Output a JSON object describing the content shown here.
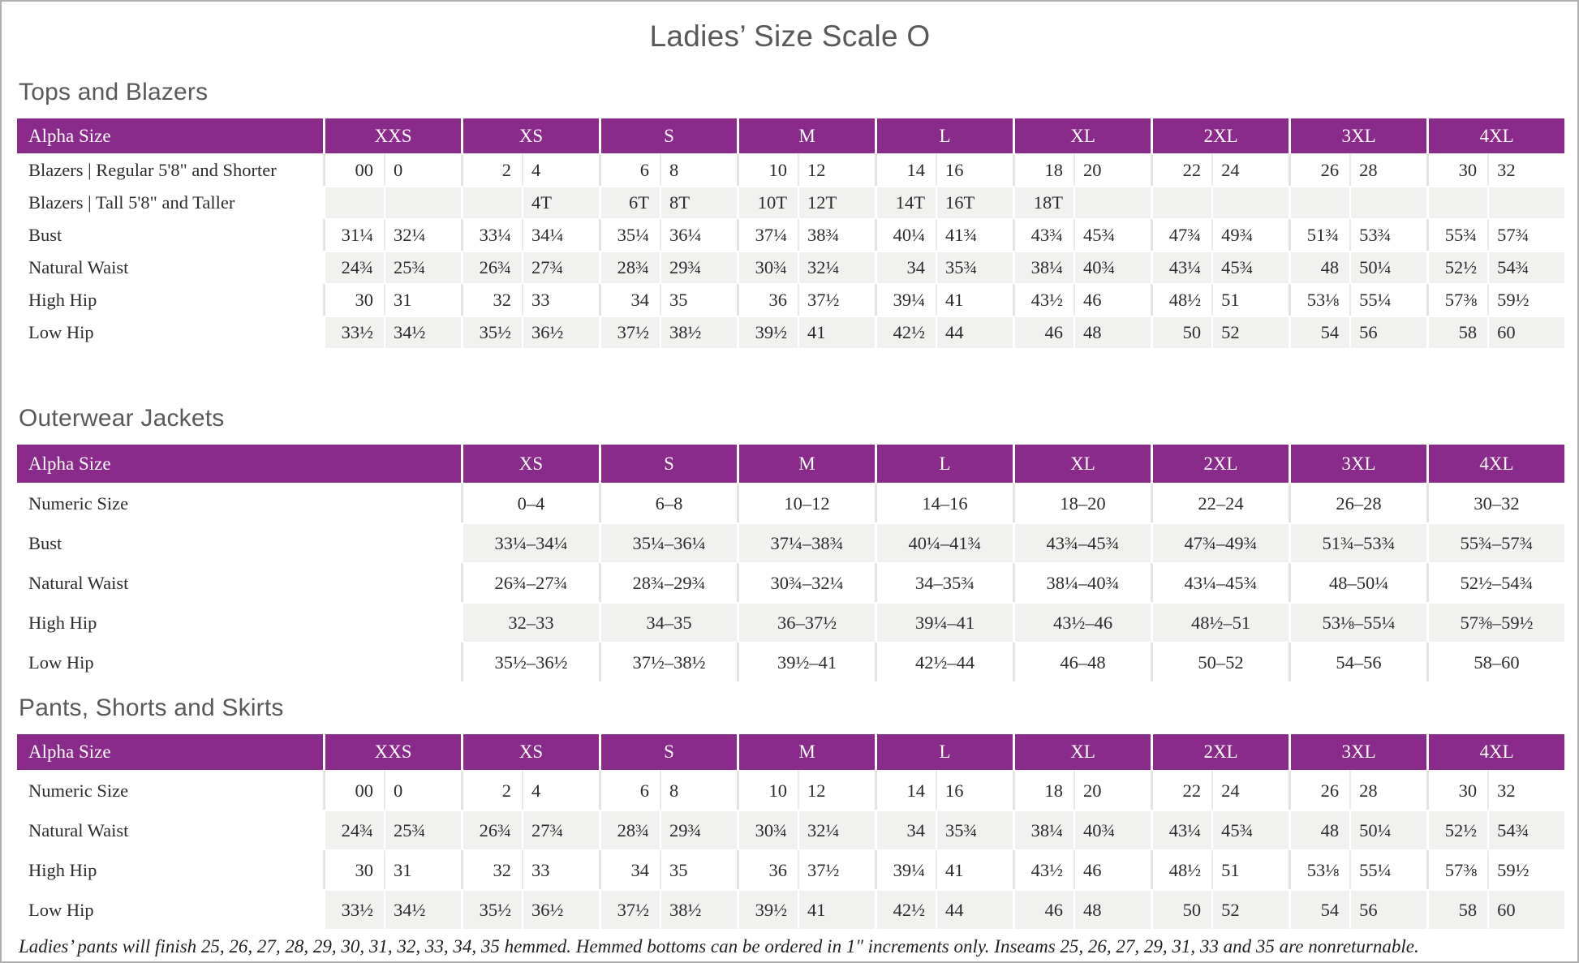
{
  "title": "Ladies’ Size Scale O",
  "footnote": "Ladies’ pants will finish 25, 26, 27, 28, 29, 30, 31, 32, 33, 34, 35 hemmed. Hemmed bottoms can be ordered in 1″ increments only. Inseams 25, 26, 27, 29, 31, 33 and 35 are nonreturnable.",
  "colors": {
    "header_purple": "#8a2a8b",
    "alt_row_gray": "#f1f1ef",
    "heading_gray": "#595959"
  },
  "tables": [
    {
      "id": "tops",
      "section_title": "Tops and Blazers",
      "layout": "paired",
      "corner_label": "Alpha Size",
      "sizes": [
        "XXS",
        "XS",
        "S",
        "M",
        "L",
        "XL",
        "2XL",
        "3XL",
        "4XL"
      ],
      "rows": [
        {
          "label": "Blazers | Regular 5'8\" and Shorter",
          "values": [
            "00",
            "0",
            "2",
            "4",
            "6",
            "8",
            "10",
            "12",
            "14",
            "16",
            "18",
            "20",
            "22",
            "24",
            "26",
            "28",
            "30",
            "32"
          ]
        },
        {
          "label": "Blazers | Tall 5'8\" and Taller",
          "values": [
            "",
            "",
            "",
            "4T",
            "6T",
            "8T",
            "10T",
            "12T",
            "14T",
            "16T",
            "18T",
            "",
            "",
            "",
            "",
            "",
            "",
            ""
          ]
        },
        {
          "label": "Bust",
          "values": [
            "31¼",
            "32¼",
            "33¼",
            "34¼",
            "35¼",
            "36¼",
            "37¼",
            "38¾",
            "40¼",
            "41¾",
            "43¾",
            "45¾",
            "47¾",
            "49¾",
            "51¾",
            "53¾",
            "55¾",
            "57¾"
          ]
        },
        {
          "label": "Natural Waist",
          "values": [
            "24¾",
            "25¾",
            "26¾",
            "27¾",
            "28¾",
            "29¾",
            "30¾",
            "32¼",
            "34",
            "35¾",
            "38¼",
            "40¾",
            "43¼",
            "45¾",
            "48",
            "50¼",
            "52½",
            "54¾"
          ]
        },
        {
          "label": "High Hip",
          "values": [
            "30",
            "31",
            "32",
            "33",
            "34",
            "35",
            "36",
            "37½",
            "39¼",
            "41",
            "43½",
            "46",
            "48½",
            "51",
            "53⅛",
            "55¼",
            "57⅜",
            "59½"
          ]
        },
        {
          "label": "Low Hip",
          "values": [
            "33½",
            "34½",
            "35½",
            "36½",
            "37½",
            "38½",
            "39½",
            "41",
            "42½",
            "44",
            "46",
            "48",
            "50",
            "52",
            "54",
            "56",
            "58",
            "60"
          ]
        }
      ]
    },
    {
      "id": "outerwear",
      "section_title": "Outerwear Jackets",
      "layout": "range",
      "corner_label": "Alpha Size",
      "sizes": [
        "XS",
        "S",
        "M",
        "L",
        "XL",
        "2XL",
        "3XL",
        "4XL"
      ],
      "rows": [
        {
          "label": "Numeric Size",
          "values": [
            "0–4",
            "6–8",
            "10–12",
            "14–16",
            "18–20",
            "22–24",
            "26–28",
            "30–32"
          ]
        },
        {
          "label": "Bust",
          "values": [
            "33¼–34¼",
            "35¼–36¼",
            "37¼–38¾",
            "40¼–41¾",
            "43¾–45¾",
            "47¾–49¾",
            "51¾–53¾",
            "55¾–57¾"
          ]
        },
        {
          "label": "Natural Waist",
          "values": [
            "26¾–27¾",
            "28¾–29¾",
            "30¾–32¼",
            "34–35¾",
            "38¼–40¾",
            "43¼–45¾",
            "48–50¼",
            "52½–54¾"
          ]
        },
        {
          "label": "High Hip",
          "values": [
            "32–33",
            "34–35",
            "36–37½",
            "39¼–41",
            "43½–46",
            "48½–51",
            "53⅛–55¼",
            "57⅜–59½"
          ]
        },
        {
          "label": "Low Hip",
          "values": [
            "35½–36½",
            "37½–38½",
            "39½–41",
            "42½–44",
            "46–48",
            "50–52",
            "54–56",
            "58–60"
          ]
        }
      ]
    },
    {
      "id": "pants",
      "section_title": "Pants, Shorts and Skirts",
      "layout": "paired",
      "corner_label": "Alpha Size",
      "sizes": [
        "XXS",
        "XS",
        "S",
        "M",
        "L",
        "XL",
        "2XL",
        "3XL",
        "4XL"
      ],
      "rows": [
        {
          "label": "Numeric Size",
          "values": [
            "00",
            "0",
            "2",
            "4",
            "6",
            "8",
            "10",
            "12",
            "14",
            "16",
            "18",
            "20",
            "22",
            "24",
            "26",
            "28",
            "30",
            "32"
          ]
        },
        {
          "label": "Natural Waist",
          "values": [
            "24¾",
            "25¾",
            "26¾",
            "27¾",
            "28¾",
            "29¾",
            "30¾",
            "32¼",
            "34",
            "35¾",
            "38¼",
            "40¾",
            "43¼",
            "45¾",
            "48",
            "50¼",
            "52½",
            "54¾"
          ]
        },
        {
          "label": "High Hip",
          "values": [
            "30",
            "31",
            "32",
            "33",
            "34",
            "35",
            "36",
            "37½",
            "39¼",
            "41",
            "43½",
            "46",
            "48½",
            "51",
            "53⅛",
            "55¼",
            "57⅜",
            "59½"
          ]
        },
        {
          "label": "Low Hip",
          "values": [
            "33½",
            "34½",
            "35½",
            "36½",
            "37½",
            "38½",
            "39½",
            "41",
            "42½",
            "44",
            "46",
            "48",
            "50",
            "52",
            "54",
            "56",
            "58",
            "60"
          ]
        }
      ]
    }
  ]
}
